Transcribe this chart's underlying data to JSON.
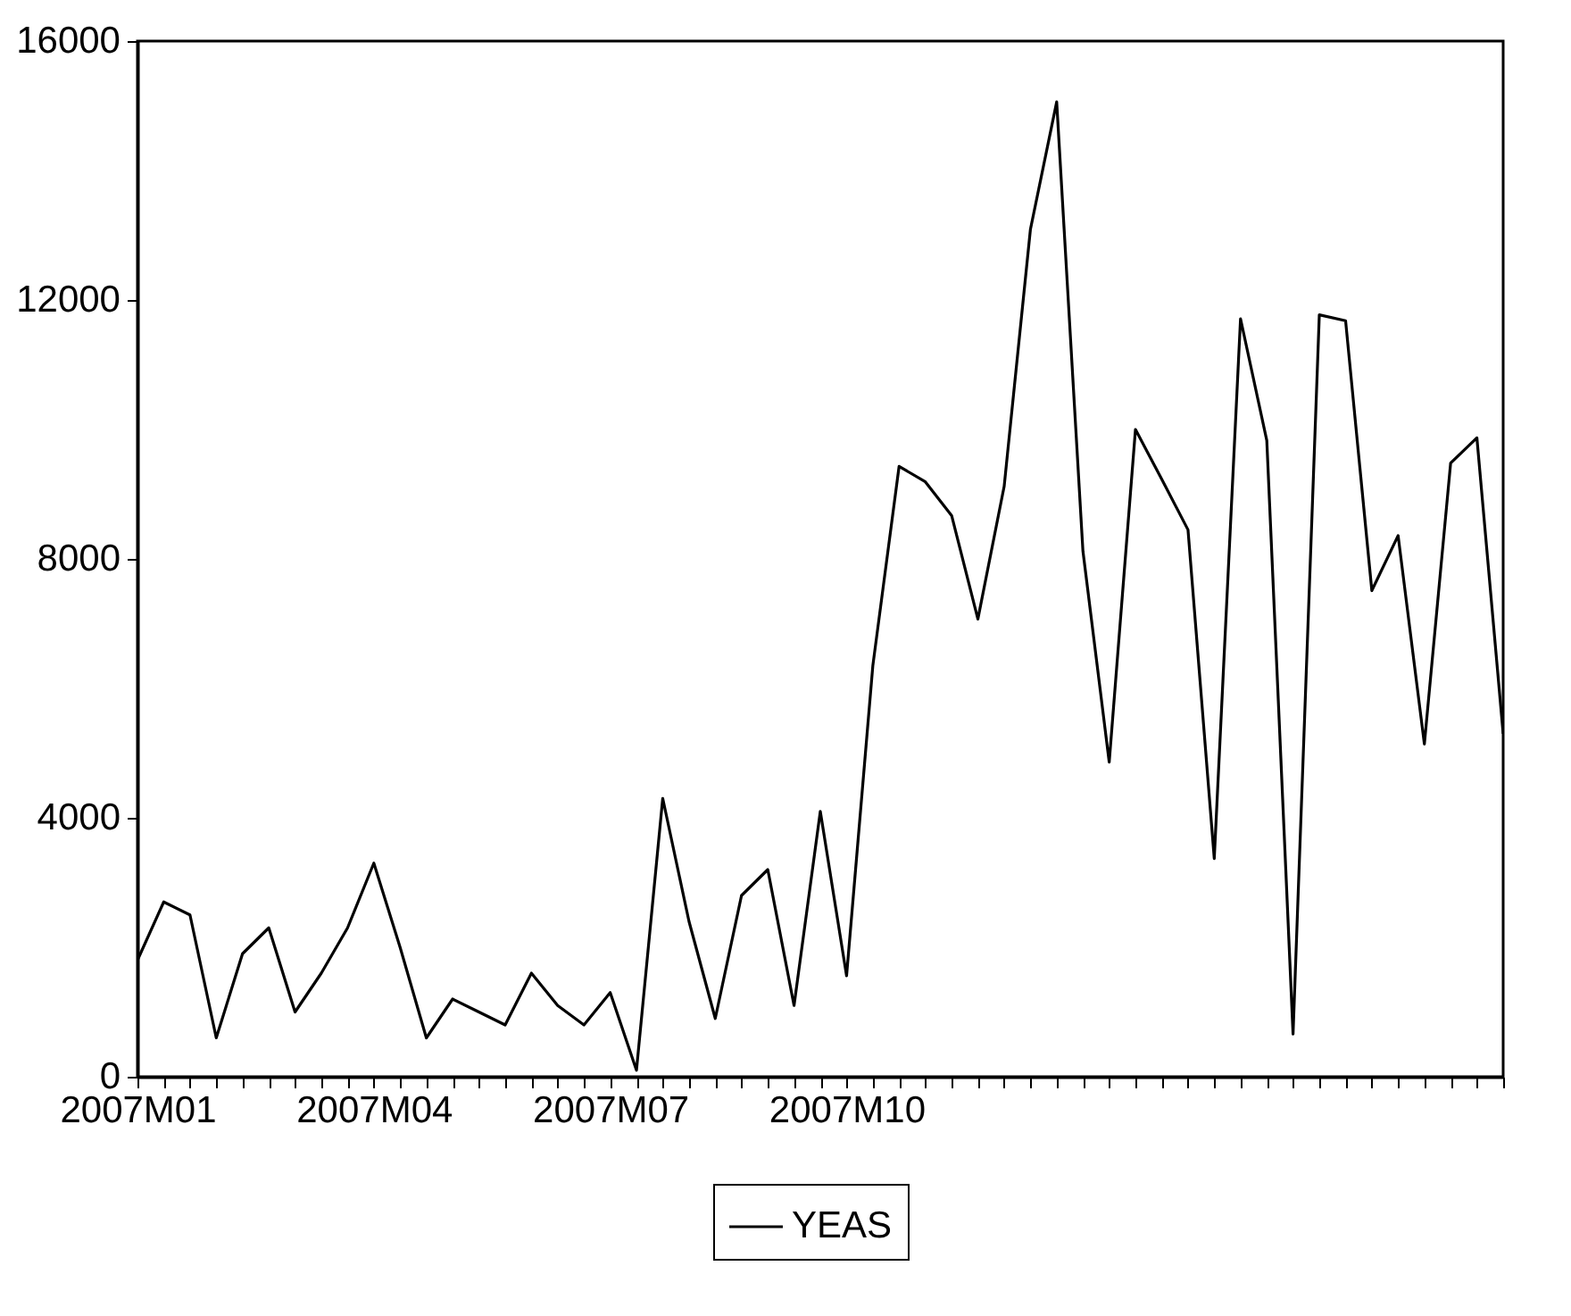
{
  "chart_data": {
    "type": "line",
    "categories": [
      "2007M01",
      null,
      null,
      null,
      null,
      null,
      null,
      null,
      null,
      "2007M04",
      null,
      null,
      null,
      null,
      null,
      null,
      null,
      null,
      "2007M07",
      null,
      null,
      null,
      null,
      null,
      null,
      null,
      null,
      "2007M10",
      null,
      null,
      null,
      null,
      null,
      null,
      null,
      null,
      null,
      null,
      null,
      null,
      null,
      null,
      null,
      null,
      null,
      null,
      null,
      null,
      null,
      null,
      null,
      null,
      null
    ],
    "series": [
      {
        "name": "YEAS",
        "color": "#000000",
        "values": [
          1800,
          2700,
          2500,
          600,
          1900,
          2300,
          1000,
          1600,
          2300,
          3300,
          2000,
          600,
          1200,
          1000,
          800,
          1600,
          1100,
          800,
          1300,
          100,
          4300,
          2400,
          900,
          2800,
          3200,
          1100,
          4100,
          1560,
          6350,
          9430,
          9190,
          8670,
          7070,
          9120,
          13090,
          15060,
          8120,
          4860,
          10000,
          9230,
          8450,
          3370,
          11710,
          9830,
          660,
          11770,
          11680,
          7510,
          8360,
          5140,
          9480,
          9870,
          5300
        ]
      }
    ],
    "ylim": [
      0,
      16000
    ],
    "yticks": [
      0,
      4000,
      8000,
      12000,
      16000
    ],
    "legend": "bottom",
    "grid": false
  }
}
